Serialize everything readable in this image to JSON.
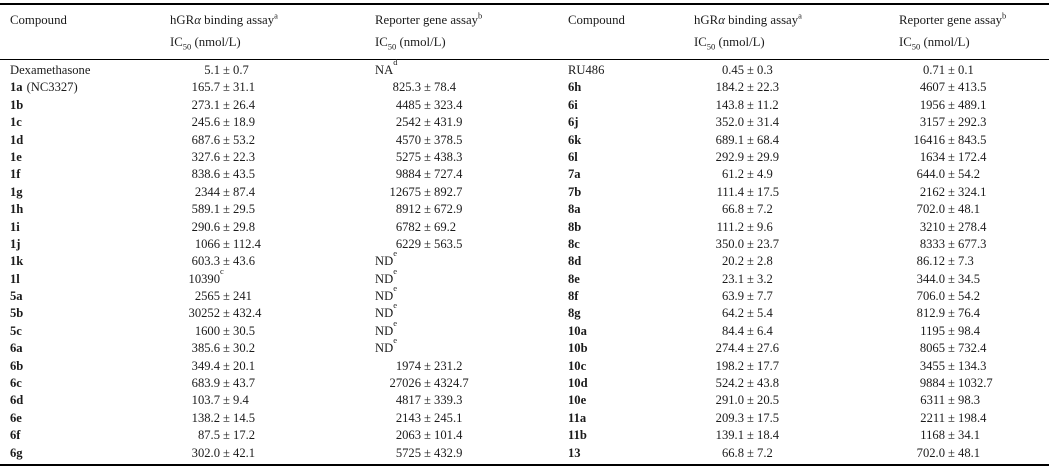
{
  "header": {
    "compound_label": "Compound",
    "binding_assay": {
      "prefix": "hGR",
      "alpha": "α",
      "suffix": " binding assay",
      "footnote": "a"
    },
    "reporter_assay": {
      "label": "Reporter gene assay",
      "footnote": "b"
    },
    "ic50": {
      "prefix": "IC",
      "sub": "50",
      "suffix": " (nmol/L)"
    }
  },
  "rows_left": [
    {
      "compound": "Dexamethasone",
      "bold": false,
      "binding": {
        "v": "5.1",
        "e": "0.7"
      },
      "reporter": {
        "v": "NA",
        "sup": "d",
        "text": true
      }
    },
    {
      "compound": "1a",
      "suffix": "(NC3327)",
      "binding": {
        "v": "165.7",
        "e": "31.1"
      },
      "reporter": {
        "v": "825.3",
        "e": "78.4"
      }
    },
    {
      "compound": "1b",
      "binding": {
        "v": "273.1",
        "e": "26.4"
      },
      "reporter": {
        "v": "4485",
        "e": "323.4"
      }
    },
    {
      "compound": "1c",
      "binding": {
        "v": "245.6",
        "e": "18.9"
      },
      "reporter": {
        "v": "2542",
        "e": "431.9"
      }
    },
    {
      "compound": "1d",
      "binding": {
        "v": "687.6",
        "e": "53.2"
      },
      "reporter": {
        "v": "4570",
        "e": "378.5"
      }
    },
    {
      "compound": "1e",
      "binding": {
        "v": "327.6",
        "e": "22.3"
      },
      "reporter": {
        "v": "5275",
        "e": "438.3"
      }
    },
    {
      "compound": "1f",
      "binding": {
        "v": "838.6",
        "e": "43.5"
      },
      "reporter": {
        "v": "9884",
        "e": "727.4"
      }
    },
    {
      "compound": "1g",
      "binding": {
        "v": "2344",
        "e": "87.4"
      },
      "reporter": {
        "v": "12675",
        "e": "892.7"
      }
    },
    {
      "compound": "1h",
      "binding": {
        "v": "589.1",
        "e": "29.5"
      },
      "reporter": {
        "v": "8912",
        "e": "672.9"
      }
    },
    {
      "compound": "1i",
      "binding": {
        "v": "290.6",
        "e": "29.8"
      },
      "reporter": {
        "v": "6782",
        "e": "69.2"
      }
    },
    {
      "compound": "1j",
      "binding": {
        "v": "1066",
        "e": "112.4"
      },
      "reporter": {
        "v": "6229",
        "e": "563.5"
      }
    },
    {
      "compound": "1k",
      "binding": {
        "v": "603.3",
        "e": "43.6"
      },
      "reporter": {
        "v": "ND",
        "sup": "e",
        "text": true
      }
    },
    {
      "compound": "1l",
      "binding": {
        "v": "10390",
        "sup": "c"
      },
      "reporter": {
        "v": "ND",
        "sup": "e",
        "text": true
      }
    },
    {
      "compound": "5a",
      "binding": {
        "v": "2565",
        "e": "241"
      },
      "reporter": {
        "v": "ND",
        "sup": "e",
        "text": true
      }
    },
    {
      "compound": "5b",
      "binding": {
        "v": "30252",
        "e": "432.4"
      },
      "reporter": {
        "v": "ND",
        "sup": "e",
        "text": true
      }
    },
    {
      "compound": "5c",
      "binding": {
        "v": "1600",
        "e": "30.5"
      },
      "reporter": {
        "v": "ND",
        "sup": "e",
        "text": true
      }
    },
    {
      "compound": "6a",
      "binding": {
        "v": "385.6",
        "e": "30.2"
      },
      "reporter": {
        "v": "ND",
        "sup": "e",
        "text": true
      }
    },
    {
      "compound": "6b",
      "binding": {
        "v": "349.4",
        "e": "20.1"
      },
      "reporter": {
        "v": "1974",
        "e": "231.2"
      }
    },
    {
      "compound": "6c",
      "binding": {
        "v": "683.9",
        "e": "43.7"
      },
      "reporter": {
        "v": "27026",
        "e": "4324.7"
      }
    },
    {
      "compound": "6d",
      "binding": {
        "v": "103.7",
        "e": "9.4"
      },
      "reporter": {
        "v": "4817",
        "e": "339.3"
      }
    },
    {
      "compound": "6e",
      "binding": {
        "v": "138.2",
        "e": "14.5"
      },
      "reporter": {
        "v": "2143",
        "e": "245.1"
      }
    },
    {
      "compound": "6f",
      "binding": {
        "v": "87.5",
        "e": "17.2"
      },
      "reporter": {
        "v": "2063",
        "e": "101.4"
      }
    },
    {
      "compound": "6g",
      "binding": {
        "v": "302.0",
        "e": "42.1"
      },
      "reporter": {
        "v": "5725",
        "e": "432.9"
      }
    }
  ],
  "rows_right": [
    {
      "compound": "RU486",
      "bold": false,
      "binding": {
        "v": "0.45",
        "e": "0.3"
      },
      "reporter": {
        "v": "0.71",
        "e": "0.1"
      }
    },
    {
      "compound": "6h",
      "binding": {
        "v": "184.2",
        "e": "22.3"
      },
      "reporter": {
        "v": "4607",
        "e": "413.5"
      }
    },
    {
      "compound": "6i",
      "binding": {
        "v": "143.8",
        "e": "11.2"
      },
      "reporter": {
        "v": "1956",
        "e": "489.1"
      }
    },
    {
      "compound": "6j",
      "binding": {
        "v": "352.0",
        "e": "31.4"
      },
      "reporter": {
        "v": "3157",
        "e": "292.3"
      }
    },
    {
      "compound": "6k",
      "binding": {
        "v": "689.1",
        "e": "68.4"
      },
      "reporter": {
        "v": "16416",
        "e": "843.5"
      }
    },
    {
      "compound": "6l",
      "binding": {
        "v": "292.9",
        "e": "29.9"
      },
      "reporter": {
        "v": "1634",
        "e": "172.4"
      }
    },
    {
      "compound": "7a",
      "binding": {
        "v": "61.2",
        "e": "4.9"
      },
      "reporter": {
        "v": "644.0",
        "e": "54.2"
      }
    },
    {
      "compound": "7b",
      "binding": {
        "v": "111.4",
        "e": "17.5"
      },
      "reporter": {
        "v": "2162",
        "e": "324.1"
      }
    },
    {
      "compound": "8a",
      "binding": {
        "v": "66.8",
        "e": "7.2"
      },
      "reporter": {
        "v": "702.0",
        "e": "48.1"
      }
    },
    {
      "compound": "8b",
      "binding": {
        "v": "111.2",
        "e": "9.6"
      },
      "reporter": {
        "v": "3210",
        "e": "278.4"
      }
    },
    {
      "compound": "8c",
      "binding": {
        "v": "350.0",
        "e": "23.7"
      },
      "reporter": {
        "v": "8333",
        "e": "677.3"
      }
    },
    {
      "compound": "8d",
      "binding": {
        "v": "20.2",
        "e": "2.8"
      },
      "reporter": {
        "v": "86.12",
        "e": "7.3"
      }
    },
    {
      "compound": "8e",
      "binding": {
        "v": "23.1",
        "e": "3.2"
      },
      "reporter": {
        "v": "344.0",
        "e": "34.5"
      }
    },
    {
      "compound": "8f",
      "binding": {
        "v": "63.9",
        "e": "7.7"
      },
      "reporter": {
        "v": "706.0",
        "e": "54.2"
      }
    },
    {
      "compound": "8g",
      "binding": {
        "v": "64.2",
        "e": "5.4"
      },
      "reporter": {
        "v": "812.9",
        "e": "76.4"
      }
    },
    {
      "compound": "10a",
      "binding": {
        "v": "84.4",
        "e": "6.4"
      },
      "reporter": {
        "v": "1195",
        "e": "98.4"
      }
    },
    {
      "compound": "10b",
      "binding": {
        "v": "274.4",
        "e": "27.6"
      },
      "reporter": {
        "v": "8065",
        "e": "732.4"
      }
    },
    {
      "compound": "10c",
      "binding": {
        "v": "198.2",
        "e": "17.7"
      },
      "reporter": {
        "v": "3455",
        "e": "134.3"
      }
    },
    {
      "compound": "10d",
      "binding": {
        "v": "524.2",
        "e": "43.8"
      },
      "reporter": {
        "v": "9884",
        "e": "1032.7"
      }
    },
    {
      "compound": "10e",
      "binding": {
        "v": "291.0",
        "e": "20.5"
      },
      "reporter": {
        "v": "6311",
        "e": "98.3"
      }
    },
    {
      "compound": "11a",
      "binding": {
        "v": "209.3",
        "e": "17.5"
      },
      "reporter": {
        "v": "2211",
        "e": "198.4"
      }
    },
    {
      "compound": "11b",
      "binding": {
        "v": "139.1",
        "e": "18.4"
      },
      "reporter": {
        "v": "1168",
        "e": "34.1"
      }
    },
    {
      "compound": "13",
      "binding": {
        "v": "66.8",
        "e": "7.2"
      },
      "reporter": {
        "v": "702.0",
        "e": "48.1"
      }
    }
  ]
}
